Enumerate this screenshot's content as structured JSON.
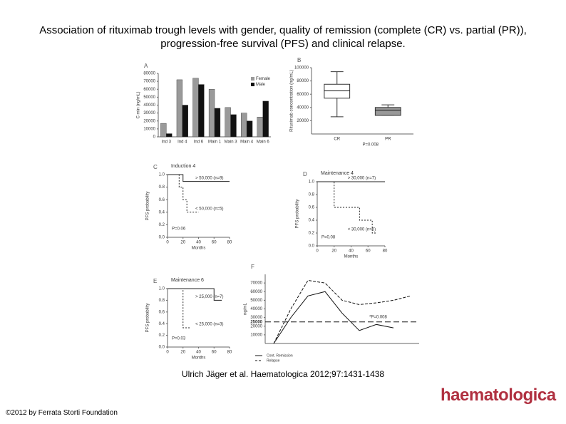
{
  "header": {
    "title": "Association of rituximab trough levels with gender, quality of remission (complete (CR) vs. partial (PR)), progression-free survival (PFS) and clinical relapse."
  },
  "chart_data": [
    {
      "type": "bar",
      "label": "A",
      "y_label": "C min (ng/mL)",
      "categories": [
        "Ind 3",
        "Ind 4",
        "Ind 6",
        "Main 1",
        "Main 3",
        "Main 4",
        "Main 6"
      ],
      "series": [
        {
          "name": "Female",
          "color": "#9a9a9a",
          "values": [
            17000,
            72000,
            74000,
            60000,
            37000,
            30000,
            25000
          ]
        },
        {
          "name": "Male",
          "color": "#111111",
          "values": [
            4000,
            40000,
            66000,
            36000,
            28000,
            20000,
            45000
          ]
        }
      ],
      "ylim": [
        0,
        80000
      ],
      "yticks": [
        0,
        10000,
        20000,
        30000,
        40000,
        50000,
        60000,
        70000,
        80000
      ]
    },
    {
      "type": "box",
      "label": "B",
      "y_label": "Rituximab concentration (ng/mL)",
      "annotation": "P=0.008",
      "categories": [
        "CR",
        "PR"
      ],
      "boxes": [
        {
          "low": 26000,
          "q1": 54000,
          "median": 65000,
          "q3": 75000,
          "high": 94000,
          "color": "#ffffff"
        },
        {
          "low": 28000,
          "q1": 28000,
          "median": 36000,
          "q3": 40000,
          "high": 44000,
          "color": "#999999"
        }
      ],
      "ylim": [
        0,
        100000
      ],
      "yticks": [
        20000,
        40000,
        60000,
        80000,
        100000
      ]
    },
    {
      "type": "line",
      "label": "C",
      "title": "Induction 4",
      "x_label": "Months",
      "y_label": "PFS probability",
      "annotation": "P=0.06",
      "series": [
        {
          "name": "> 50,000 (n=9)",
          "color": "#222222",
          "dash": false,
          "x": [
            0,
            20,
            20,
            80
          ],
          "values": [
            1,
            1,
            0.89,
            0.89
          ]
        },
        {
          "name": "< 50,000 (n=5)",
          "color": "#222222",
          "dash": true,
          "x": [
            0,
            15,
            15,
            20,
            20,
            25,
            25,
            40
          ],
          "values": [
            1,
            1,
            0.8,
            0.8,
            0.6,
            0.6,
            0.4,
            0.4
          ]
        }
      ],
      "xlim": [
        0,
        80
      ],
      "xticks": [
        0,
        20,
        40,
        60,
        80
      ],
      "ylim": [
        0,
        1
      ],
      "yticks": [
        {
          "value": 0,
          "label": "0.0"
        },
        0.2,
        0.4,
        0.6,
        0.8,
        {
          "value": 1,
          "label": "1.0"
        }
      ]
    },
    {
      "type": "line",
      "label": "D",
      "title": "Maintenance 4",
      "x_label": "Months",
      "y_label": "PFS probability",
      "annotation": "P=0.08",
      "series": [
        {
          "name": "> 30,000 (n=7)",
          "color": "#222222",
          "dash": false,
          "x": [
            0,
            80
          ],
          "values": [
            1,
            1
          ]
        },
        {
          "name": "< 30,000 (n=5)",
          "color": "#222222",
          "dash": true,
          "x": [
            0,
            20,
            20,
            50,
            50,
            65,
            65,
            70
          ],
          "values": [
            1,
            1,
            0.6,
            0.6,
            0.4,
            0.4,
            0.2,
            0.2
          ]
        }
      ],
      "xlim": [
        0,
        80
      ],
      "xticks": [
        0,
        20,
        40,
        60,
        80
      ],
      "ylim": [
        0,
        1
      ],
      "yticks": [
        {
          "value": 0,
          "label": "0.0"
        },
        0.2,
        0.4,
        0.6,
        0.8,
        {
          "value": 1,
          "label": "1.0"
        }
      ]
    },
    {
      "type": "line",
      "label": "E",
      "title": "Maintenance 6",
      "x_label": "Months",
      "y_label": "PFS probability",
      "annotation": "P=0.03",
      "series": [
        {
          "name": "> 25,000 (n=7)",
          "color": "#222222",
          "dash": false,
          "x": [
            0,
            60,
            60,
            70
          ],
          "values": [
            1,
            1,
            0.8,
            0.8
          ]
        },
        {
          "name": "< 25,000 (n=3)",
          "color": "#222222",
          "dash": true,
          "x": [
            0,
            20,
            20,
            30
          ],
          "values": [
            1,
            1,
            0.33,
            0.33
          ]
        }
      ],
      "xlim": [
        0,
        80
      ],
      "xticks": [
        0,
        20,
        40,
        60,
        80
      ],
      "ylim": [
        0,
        1
      ],
      "yticks": [
        {
          "value": 0,
          "label": "0.0"
        },
        0.2,
        0.4,
        0.6,
        0.8,
        {
          "value": 1,
          "label": "1.0"
        }
      ]
    },
    {
      "type": "line",
      "label": "F",
      "y_label": "ng/mL",
      "annotation": "*P=0.008",
      "threshold": 25000,
      "categories": [
        null,
        null,
        null,
        null,
        null,
        null,
        null,
        null,
        null
      ],
      "series": [
        {
          "name": "Cont. Remission",
          "color": "#111111",
          "dash": false,
          "values": [
            0,
            30000,
            55000,
            60000,
            35000,
            15000,
            22000,
            18000,
            null
          ]
        },
        {
          "name": "Relapse",
          "color": "#111111",
          "dash": true,
          "values": [
            0,
            40000,
            73000,
            70000,
            50000,
            45000,
            47000,
            50000,
            55000
          ]
        }
      ],
      "ylim": [
        0,
        80000
      ],
      "yticks": [
        10000,
        20000,
        30000,
        40000,
        50000,
        60000,
        70000
      ]
    }
  ],
  "citation": "Ulrich Jäger et al. Haematologica 2012;97:1431-1438",
  "footer": {
    "copyright": "©2012 by Ferrata Storti Foundation",
    "logo": "haematologica"
  }
}
